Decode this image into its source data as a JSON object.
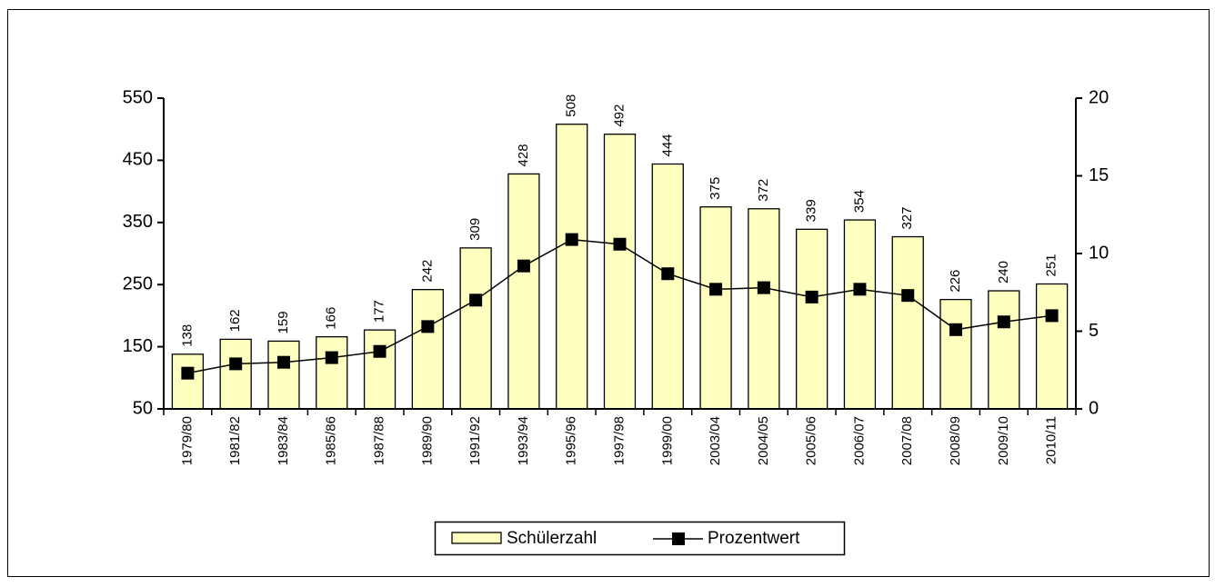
{
  "chart_data": {
    "type": "bar_line",
    "categories": [
      "1979/80",
      "1981/82",
      "1983/84",
      "1985/86",
      "1987/88",
      "1989/90",
      "1991/92",
      "1993/94",
      "1995/96",
      "1997/98",
      "1999/00",
      "2003/04",
      "2004/05",
      "2005/06",
      "2006/07",
      "2007/08",
      "2008/09",
      "2009/10",
      "2010/11"
    ],
    "series": [
      {
        "name": "Schülerzahl",
        "type": "bar",
        "color": "#ffffc0",
        "values": [
          138,
          162,
          159,
          166,
          177,
          242,
          309,
          428,
          508,
          492,
          444,
          375,
          372,
          339,
          354,
          327,
          226,
          240,
          251
        ]
      },
      {
        "name": "Prozentwert",
        "type": "line",
        "axis": "y2",
        "color": "#000000",
        "values": [
          2.3,
          2.9,
          3.0,
          3.3,
          3.7,
          5.3,
          7.0,
          9.2,
          10.9,
          10.6,
          8.7,
          7.7,
          7.8,
          7.2,
          7.7,
          7.3,
          5.1,
          5.6,
          6.0
        ]
      }
    ],
    "ylim": [
      50,
      550
    ],
    "yticks": [
      50,
      150,
      250,
      350,
      450,
      550
    ],
    "y2lim": [
      0,
      20
    ],
    "y2ticks": [
      0,
      5,
      10,
      15,
      20
    ],
    "grid": false,
    "legend": "bottom"
  }
}
